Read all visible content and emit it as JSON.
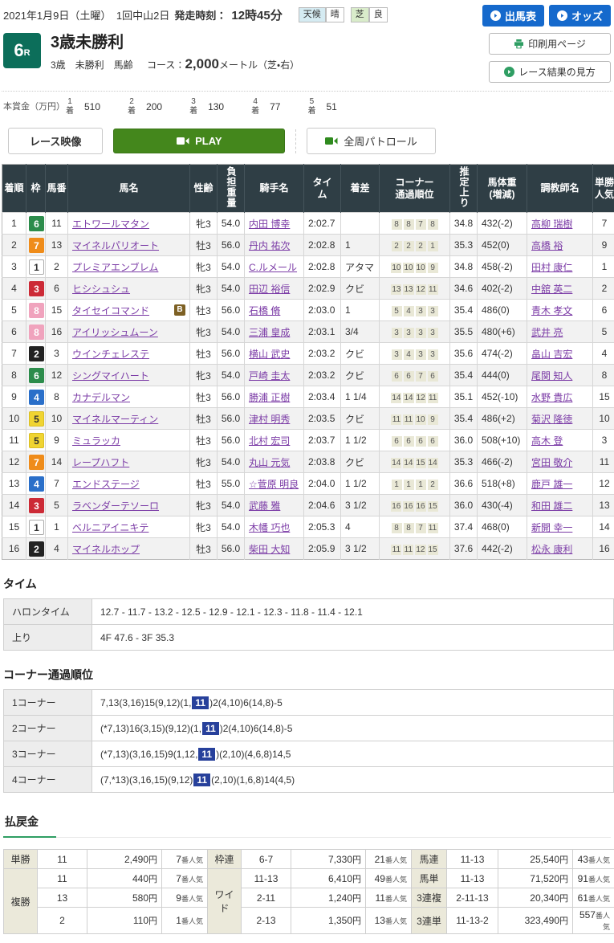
{
  "colors": {
    "accent_blue": "#1569cc",
    "accent_green": "#44871c",
    "race_badge_teal": "#0c6e5a",
    "table_header_bg": "#2f3e45",
    "link_purple": "#7b3ba6",
    "corner_chip_bg": "#e9e8d6",
    "highlight_blue": "#27409b",
    "payout_label_bg": "#ebe9da",
    "frame_colors": {
      "1": {
        "bg": "#ffffff",
        "fg": "#333333",
        "border": "#aaaaaa"
      },
      "2": {
        "bg": "#222222",
        "fg": "#ffffff",
        "border": "#222222"
      },
      "3": {
        "bg": "#cc2a36",
        "fg": "#ffffff",
        "border": "#cc2a36"
      },
      "4": {
        "bg": "#2a6fc9",
        "fg": "#ffffff",
        "border": "#2a6fc9"
      },
      "5": {
        "bg": "#f0d431",
        "fg": "#333333",
        "border": "#d9be24"
      },
      "6": {
        "bg": "#2c8c4b",
        "fg": "#ffffff",
        "border": "#2c8c4b"
      },
      "7": {
        "bg": "#ef8c1a",
        "fg": "#ffffff",
        "border": "#ef8c1a"
      },
      "8": {
        "bg": "#f0a3bd",
        "fg": "#ffffff",
        "border": "#f0a3bd"
      }
    }
  },
  "topbar": {
    "date": "2021年1月9日（土曜）　1回中山2日",
    "start_label": "発走時刻：",
    "start_time": "12時45分",
    "weather_label": "天候",
    "weather_value": "晴",
    "turf_label": "芝",
    "turf_value": "良",
    "btn_racecard": "出馬表",
    "btn_odds": "オッズ"
  },
  "race_header": {
    "race_no": "6",
    "race_no_suffix": "R",
    "title": "3歳未勝利",
    "conditions": "3歳　未勝利　馬齢",
    "course_label": "コース：",
    "course_distance": "2,000",
    "course_detail": "メートル（芝・右）",
    "btn_print": "印刷用ページ",
    "btn_howto": "レース結果の見方"
  },
  "prize": {
    "label": "本賞金（万円）",
    "items": [
      {
        "rank": "1",
        "rank_suffix": "着",
        "amount": "510"
      },
      {
        "rank": "2",
        "rank_suffix": "着",
        "amount": "200"
      },
      {
        "rank": "3",
        "rank_suffix": "着",
        "amount": "130"
      },
      {
        "rank": "4",
        "rank_suffix": "着",
        "amount": "77"
      },
      {
        "rank": "5",
        "rank_suffix": "着",
        "amount": "51"
      }
    ]
  },
  "video_bar": {
    "race_video": "レース映像",
    "play": "PLAY",
    "patrol": "全周パトロール"
  },
  "results": {
    "headers": [
      "着順",
      "枠",
      "馬番",
      "馬名",
      "性齢",
      "負担重量",
      "騎手名",
      "タイ\nム",
      "着差",
      "コーナー\n通過順位",
      "推定上り",
      "馬体重\n(増減)",
      "調教師名",
      "単勝\n人気"
    ],
    "rows": [
      {
        "rank": "1",
        "frame": "6",
        "no": "11",
        "horse": "エトワールマタン",
        "blinker": "",
        "sex_age": "牝3",
        "weight": "54.0",
        "jockey": "内田 博幸",
        "time": "2:02.7",
        "margin": "",
        "corners": [
          "8",
          "8",
          "7",
          "8"
        ],
        "last3f": "34.8",
        "body": "432(-2)",
        "trainer": "高柳 瑞樹",
        "pop": "7"
      },
      {
        "rank": "2",
        "frame": "7",
        "no": "13",
        "horse": "マイネルパリオート",
        "blinker": "",
        "sex_age": "牡3",
        "weight": "56.0",
        "jockey": "丹内 祐次",
        "time": "2:02.8",
        "margin": "1",
        "corners": [
          "2",
          "2",
          "2",
          "1"
        ],
        "last3f": "35.3",
        "body": "452(0)",
        "trainer": "高橋 裕",
        "pop": "9"
      },
      {
        "rank": "3",
        "frame": "1",
        "no": "2",
        "horse": "プレミアエンブレム",
        "blinker": "",
        "sex_age": "牝3",
        "weight": "54.0",
        "jockey": "C.ルメール",
        "time": "2:02.8",
        "margin": "アタマ",
        "corners": [
          "10",
          "10",
          "10",
          "9"
        ],
        "last3f": "34.8",
        "body": "458(-2)",
        "trainer": "田村 康仁",
        "pop": "1"
      },
      {
        "rank": "4",
        "frame": "3",
        "no": "6",
        "horse": "ヒシシュシュ",
        "blinker": "",
        "sex_age": "牝3",
        "weight": "54.0",
        "jockey": "田辺 裕信",
        "time": "2:02.9",
        "margin": "クビ",
        "corners": [
          "13",
          "13",
          "12",
          "11"
        ],
        "last3f": "34.6",
        "body": "402(-2)",
        "trainer": "中舘 英二",
        "pop": "2"
      },
      {
        "rank": "5",
        "frame": "8",
        "no": "15",
        "horse": "タイセイコマンド",
        "blinker": "B",
        "sex_age": "牡3",
        "weight": "56.0",
        "jockey": "石橋 脩",
        "time": "2:03.0",
        "margin": "1",
        "corners": [
          "5",
          "4",
          "3",
          "3"
        ],
        "last3f": "35.4",
        "body": "486(0)",
        "trainer": "青木 孝文",
        "pop": "6"
      },
      {
        "rank": "6",
        "frame": "8",
        "no": "16",
        "horse": "アイリッシュムーン",
        "blinker": "",
        "sex_age": "牝3",
        "weight": "54.0",
        "jockey": "三浦 皇成",
        "time": "2:03.1",
        "margin": "3/4",
        "corners": [
          "3",
          "3",
          "3",
          "3"
        ],
        "last3f": "35.5",
        "body": "480(+6)",
        "trainer": "武井 亮",
        "pop": "5"
      },
      {
        "rank": "7",
        "frame": "2",
        "no": "3",
        "horse": "ウインチェレステ",
        "blinker": "",
        "sex_age": "牡3",
        "weight": "56.0",
        "jockey": "横山 武史",
        "time": "2:03.2",
        "margin": "クビ",
        "corners": [
          "3",
          "4",
          "3",
          "3"
        ],
        "last3f": "35.6",
        "body": "474(-2)",
        "trainer": "畠山 吉宏",
        "pop": "4"
      },
      {
        "rank": "8",
        "frame": "6",
        "no": "12",
        "horse": "シングマイハート",
        "blinker": "",
        "sex_age": "牝3",
        "weight": "54.0",
        "jockey": "戸崎 圭太",
        "time": "2:03.2",
        "margin": "クビ",
        "corners": [
          "6",
          "6",
          "7",
          "6"
        ],
        "last3f": "35.4",
        "body": "444(0)",
        "trainer": "尾関 知人",
        "pop": "8"
      },
      {
        "rank": "9",
        "frame": "4",
        "no": "8",
        "horse": "カナデルマン",
        "blinker": "",
        "sex_age": "牡3",
        "weight": "56.0",
        "jockey": "勝浦 正樹",
        "time": "2:03.4",
        "margin": "1 1/4",
        "corners": [
          "14",
          "14",
          "12",
          "11"
        ],
        "last3f": "35.1",
        "body": "452(-10)",
        "trainer": "水野 貴広",
        "pop": "15"
      },
      {
        "rank": "10",
        "frame": "5",
        "no": "10",
        "horse": "マイネルマーティン",
        "blinker": "",
        "sex_age": "牡3",
        "weight": "56.0",
        "jockey": "津村 明秀",
        "time": "2:03.5",
        "margin": "クビ",
        "corners": [
          "11",
          "11",
          "10",
          "9"
        ],
        "last3f": "35.4",
        "body": "486(+2)",
        "trainer": "菊沢 隆徳",
        "pop": "10"
      },
      {
        "rank": "11",
        "frame": "5",
        "no": "9",
        "horse": "ミュラッカ",
        "blinker": "",
        "sex_age": "牡3",
        "weight": "56.0",
        "jockey": "北村 宏司",
        "time": "2:03.7",
        "margin": "1 1/2",
        "corners": [
          "6",
          "6",
          "6",
          "6"
        ],
        "last3f": "36.0",
        "body": "508(+10)",
        "trainer": "高木 登",
        "pop": "3"
      },
      {
        "rank": "12",
        "frame": "7",
        "no": "14",
        "horse": "レープハフト",
        "blinker": "",
        "sex_age": "牝3",
        "weight": "54.0",
        "jockey": "丸山 元気",
        "time": "2:03.8",
        "margin": "クビ",
        "corners": [
          "14",
          "14",
          "15",
          "14"
        ],
        "last3f": "35.3",
        "body": "466(-2)",
        "trainer": "宮田 敬介",
        "pop": "11"
      },
      {
        "rank": "13",
        "frame": "4",
        "no": "7",
        "horse": "エンドステージ",
        "blinker": "",
        "sex_age": "牡3",
        "weight": "55.0",
        "jockey": "☆菅原 明良",
        "time": "2:04.0",
        "margin": "1 1/2",
        "corners": [
          "1",
          "1",
          "1",
          "2"
        ],
        "last3f": "36.6",
        "body": "518(+8)",
        "trainer": "鹿戸 雄一",
        "pop": "12"
      },
      {
        "rank": "14",
        "frame": "3",
        "no": "5",
        "horse": "ラベンダーテソーロ",
        "blinker": "",
        "sex_age": "牝3",
        "weight": "54.0",
        "jockey": "武藤 雅",
        "time": "2:04.6",
        "margin": "3 1/2",
        "corners": [
          "16",
          "16",
          "16",
          "15"
        ],
        "last3f": "36.0",
        "body": "430(-4)",
        "trainer": "和田 雄二",
        "pop": "13"
      },
      {
        "rank": "15",
        "frame": "1",
        "no": "1",
        "horse": "ベルニアイニキテ",
        "blinker": "",
        "sex_age": "牝3",
        "weight": "54.0",
        "jockey": "木幡 巧也",
        "time": "2:05.3",
        "margin": "4",
        "corners": [
          "8",
          "8",
          "7",
          "11"
        ],
        "last3f": "37.4",
        "body": "468(0)",
        "trainer": "新開 幸一",
        "pop": "14"
      },
      {
        "rank": "16",
        "frame": "2",
        "no": "4",
        "horse": "マイネルホップ",
        "blinker": "",
        "sex_age": "牡3",
        "weight": "56.0",
        "jockey": "柴田 大知",
        "time": "2:05.9",
        "margin": "3 1/2",
        "corners": [
          "11",
          "11",
          "12",
          "15"
        ],
        "last3f": "37.6",
        "body": "442(-2)",
        "trainer": "松永 康利",
        "pop": "16"
      }
    ]
  },
  "time_section": {
    "heading": "タイム",
    "rows": [
      {
        "label": "ハロンタイム",
        "value": "12.7 - 11.7 - 13.2 - 12.5 - 12.9 - 12.1 - 12.3 - 11.8 - 11.4 - 12.1"
      },
      {
        "label": "上り",
        "value": "4F 47.6 - 3F 35.3"
      }
    ]
  },
  "corner_section": {
    "heading": "コーナー通過順位",
    "rows": [
      {
        "label": "1コーナー",
        "pre": "7,13(3,16)15(9,12)(1,",
        "highlight": "11",
        "post": ")2(4,10)6(14,8)-5"
      },
      {
        "label": "2コーナー",
        "pre": "(*7,13)16(3,15)(9,12)(1,",
        "highlight": "11",
        "post": ")2(4,10)6(14,8)-5"
      },
      {
        "label": "3コーナー",
        "pre": "(*7,13)(3,16,15)9(1,12,",
        "highlight": "11",
        "post": ")(2,10)(4,6,8)14,5"
      },
      {
        "label": "4コーナー",
        "pre": "(7,*13)(3,16,15)(9,12)",
        "highlight": "11",
        "post": "(2,10)(1,6,8)14(4,5)"
      }
    ]
  },
  "payout": {
    "heading": "払戻金",
    "yen_suffix": "円",
    "pop_suffix": "番人気",
    "groups": [
      {
        "sections": [
          {
            "label": "単勝",
            "rows": [
              {
                "combo": "11",
                "amount": "2,490",
                "pop": "7"
              }
            ]
          },
          {
            "label": "複勝",
            "rows": [
              {
                "combo": "11",
                "amount": "440",
                "pop": "7"
              },
              {
                "combo": "13",
                "amount": "580",
                "pop": "9"
              },
              {
                "combo": "2",
                "amount": "110",
                "pop": "1"
              }
            ]
          }
        ]
      },
      {
        "sections": [
          {
            "label": "枠連",
            "rows": [
              {
                "combo": "6-7",
                "amount": "7,330",
                "pop": "21"
              }
            ]
          },
          {
            "label": "ワイド",
            "rows": [
              {
                "combo": "11-13",
                "amount": "6,410",
                "pop": "49"
              },
              {
                "combo": "2-11",
                "amount": "1,240",
                "pop": "11"
              },
              {
                "combo": "2-13",
                "amount": "1,350",
                "pop": "13"
              }
            ]
          }
        ]
      },
      {
        "sections": [
          {
            "label": "馬連",
            "rows": [
              {
                "combo": "11-13",
                "amount": "25,540",
                "pop": "43"
              }
            ]
          },
          {
            "label": "馬単",
            "rows": [
              {
                "combo": "11-13",
                "amount": "71,520",
                "pop": "91"
              }
            ]
          },
          {
            "label": "3連複",
            "rows": [
              {
                "combo": "2-11-13",
                "amount": "20,340",
                "pop": "61"
              }
            ]
          },
          {
            "label": "3連単",
            "rows": [
              {
                "combo": "11-13-2",
                "amount": "323,490",
                "pop": "557"
              }
            ]
          }
        ]
      }
    ]
  }
}
